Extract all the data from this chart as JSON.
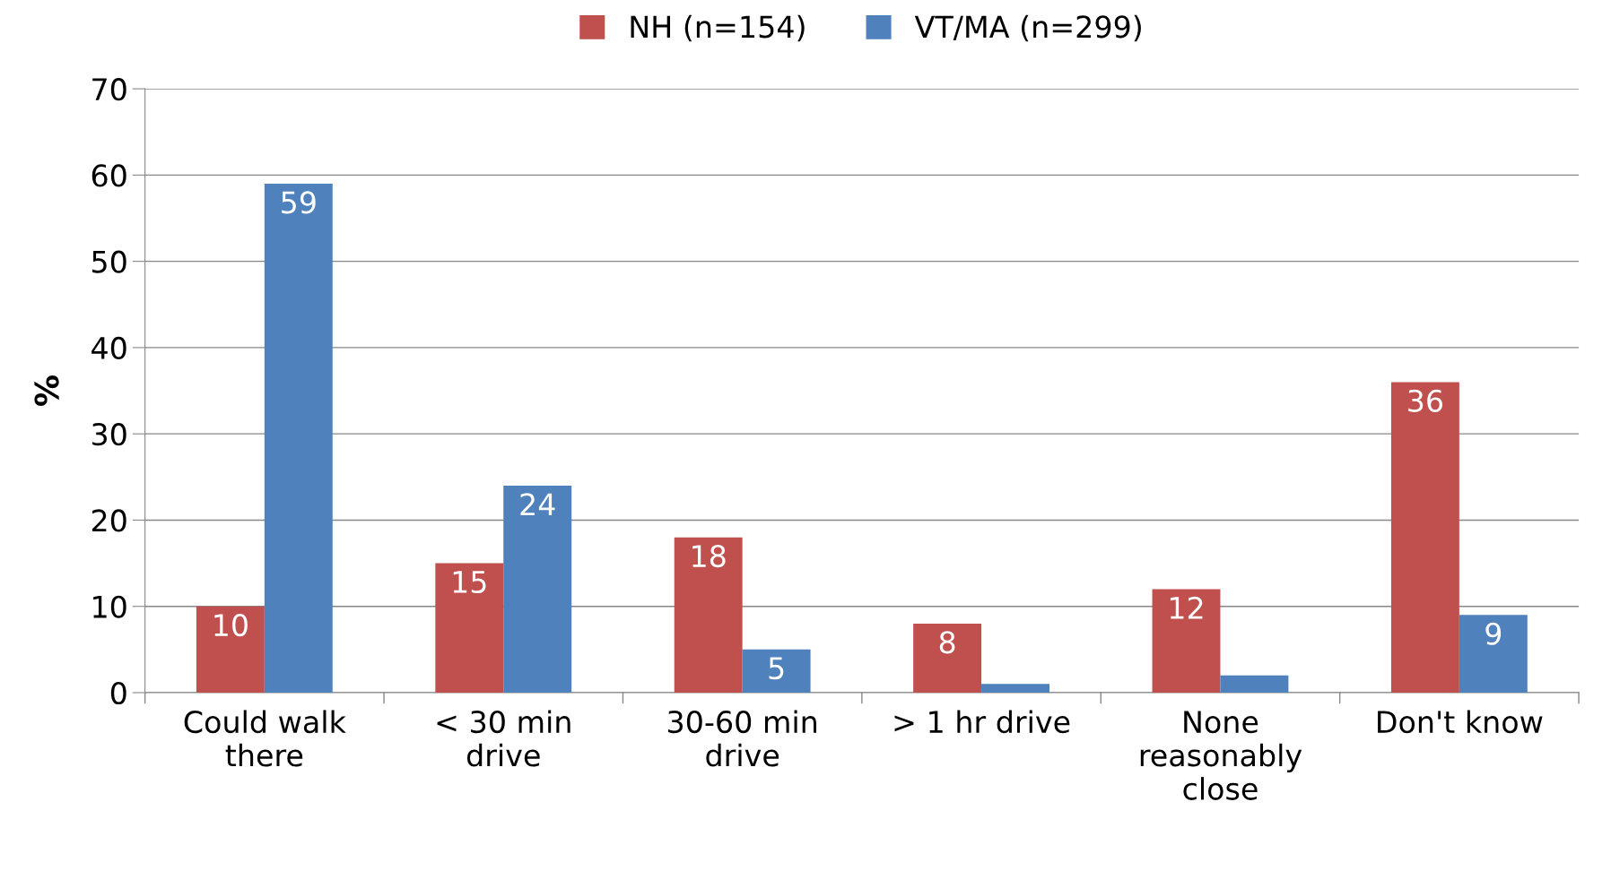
{
  "chart_data": {
    "type": "bar",
    "ylabel": "%",
    "categories": [
      "Could walk there",
      "< 30 min drive",
      "30-60 min drive",
      "> 1 hr drive",
      "None reasonably close",
      "Don't know"
    ],
    "series": [
      {
        "name": "NH (n=154)",
        "color": "#c0504d",
        "values": [
          10,
          15,
          18,
          8,
          12,
          36
        ],
        "value_labels": [
          "10",
          "15",
          "18",
          "8",
          "12",
          "36"
        ]
      },
      {
        "name": "VT/MA (n=299)",
        "color": "#4f81bd",
        "values": [
          59,
          24,
          5,
          1,
          2,
          9
        ],
        "value_labels": [
          "59",
          "24",
          "5",
          null,
          null,
          "9"
        ]
      }
    ],
    "ylim": [
      0,
      70
    ],
    "yticks": [
      0,
      10,
      20,
      30,
      40,
      50,
      60,
      70
    ],
    "grid": "y",
    "legend": "top"
  }
}
